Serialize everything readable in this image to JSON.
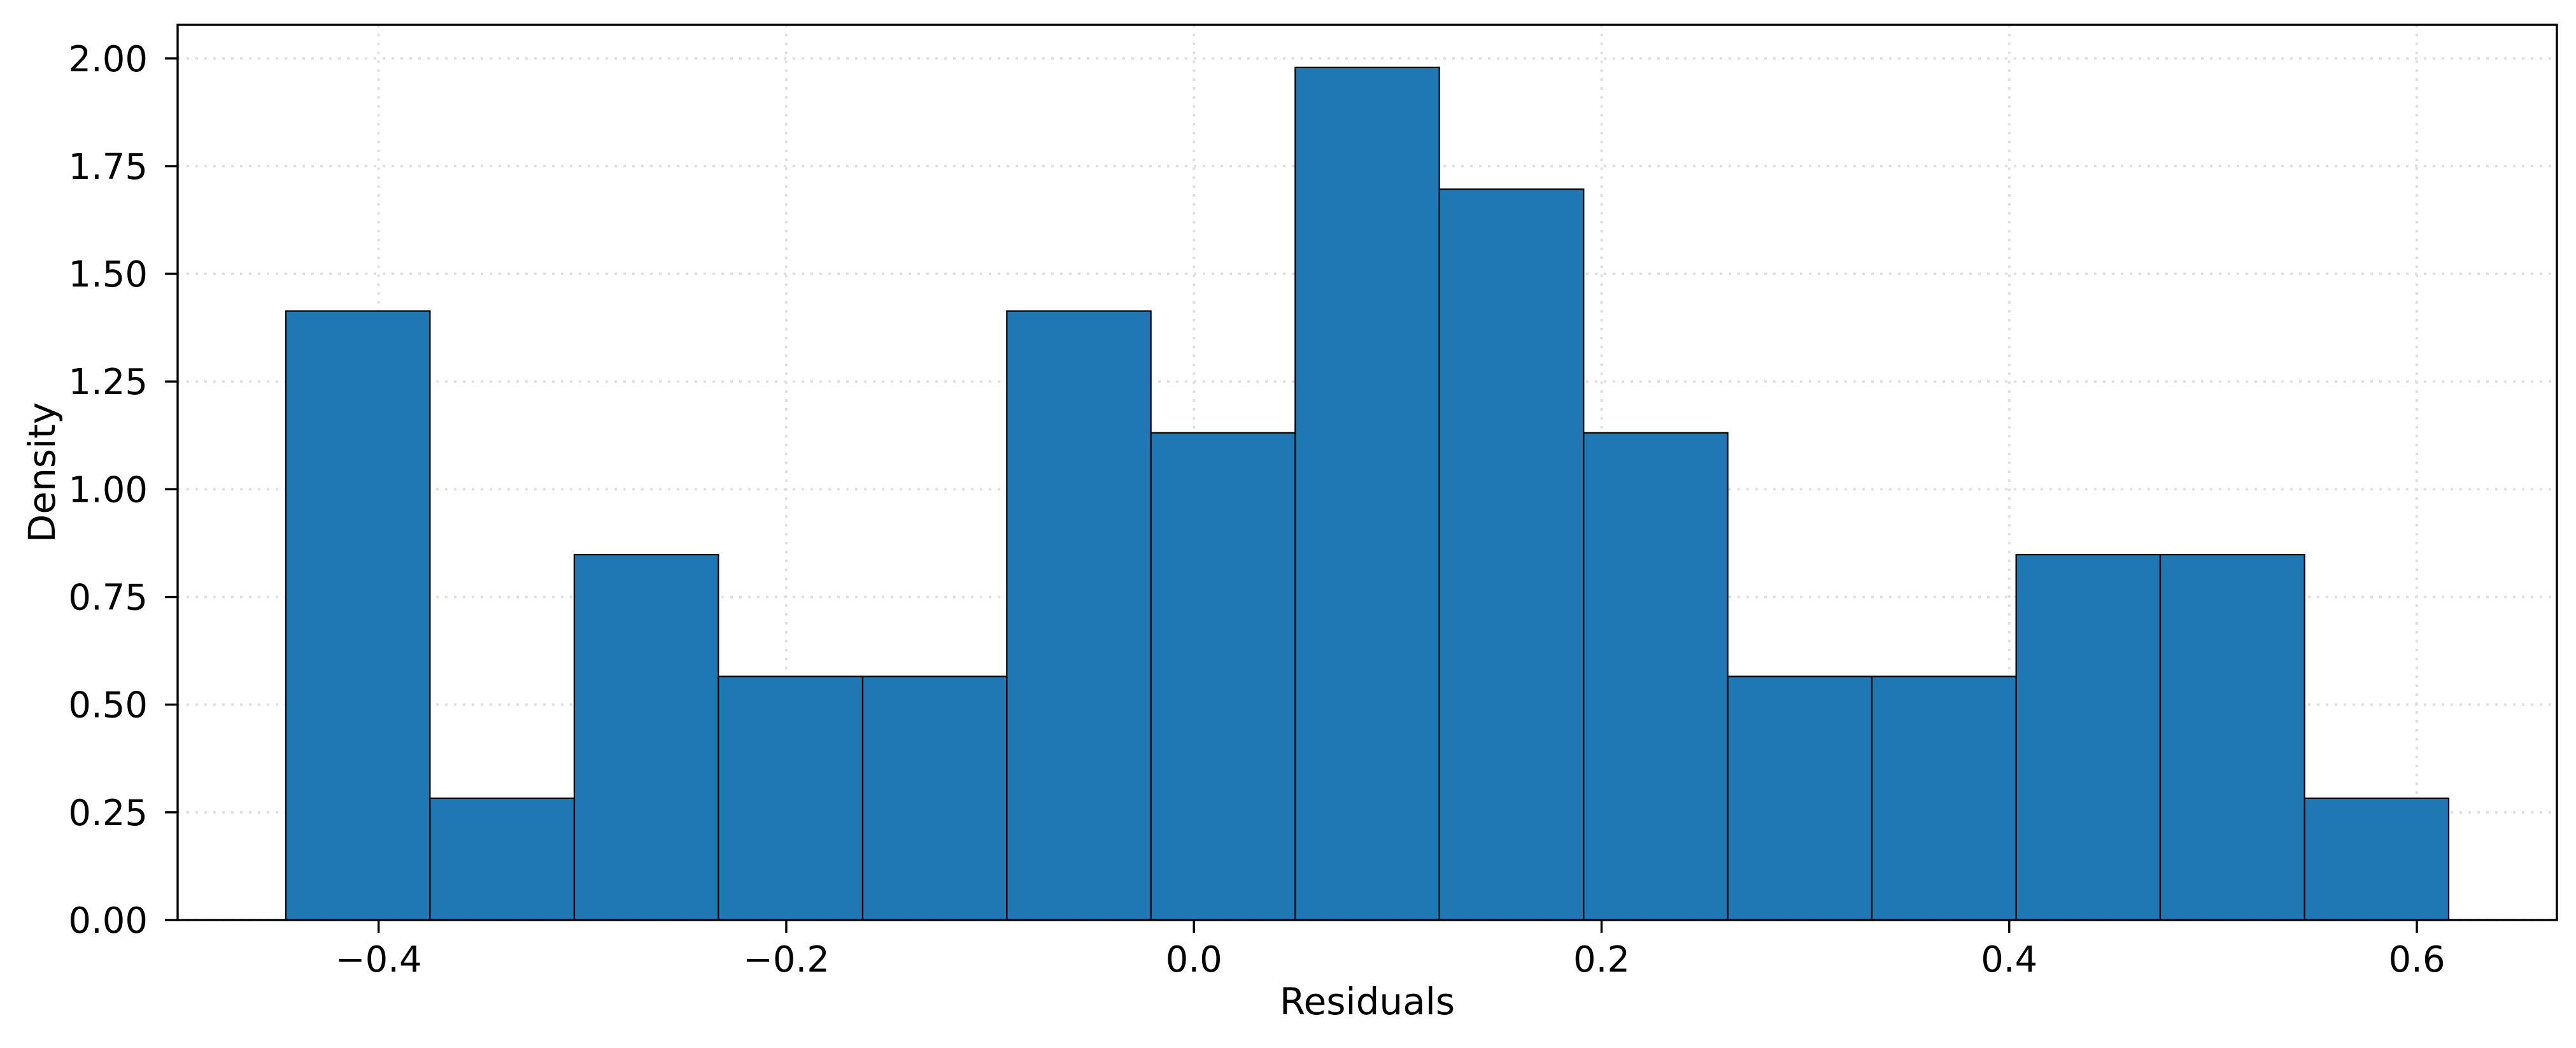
{
  "chart_data": {
    "type": "bar",
    "subtype": "histogram-density",
    "title": "",
    "xlabel": "Residuals",
    "ylabel": "Density",
    "n_samples": 50,
    "bin_edges": [
      -0.4455,
      -0.3748,
      -0.304,
      -0.2333,
      -0.1625,
      -0.0918,
      -0.0211,
      0.0497,
      0.1204,
      0.1912,
      0.2619,
      0.3326,
      0.4034,
      0.4741,
      0.5449,
      0.6156
    ],
    "bin_width": 0.0707,
    "counts": [
      5,
      1,
      3,
      2,
      2,
      5,
      4,
      7,
      6,
      4,
      2,
      2,
      3,
      3,
      1
    ],
    "values": [
      1.4137,
      0.2827,
      0.8482,
      0.5655,
      0.5655,
      1.4137,
      1.131,
      1.9792,
      1.6965,
      1.131,
      0.5655,
      0.5655,
      0.8482,
      0.8482,
      0.2827
    ],
    "xlim": [
      -0.4986,
      0.6687
    ],
    "ylim": [
      0,
      2.078
    ],
    "xticks": {
      "values": [
        -0.4,
        -0.2,
        0.0,
        0.2,
        0.4,
        0.6
      ],
      "labels": [
        "−0.4",
        "−0.2",
        "0.0",
        "0.2",
        "0.4",
        "0.6"
      ]
    },
    "yticks": {
      "values": [
        0,
        0.25,
        0.5,
        0.75,
        1.0,
        1.25,
        1.5,
        1.75,
        2.0
      ],
      "labels": [
        "0.00",
        "0.25",
        "0.50",
        "0.75",
        "1.00",
        "1.25",
        "1.50",
        "1.75",
        "2.00"
      ]
    },
    "colors": {
      "bar_fill": "#1f77b4",
      "bar_edge": "#000000",
      "spine": "#000000",
      "grid": "#e0e0e0",
      "background": "#ffffff"
    },
    "grid": {
      "show": true,
      "style": "dotted",
      "which": "both"
    },
    "legend": null
  }
}
